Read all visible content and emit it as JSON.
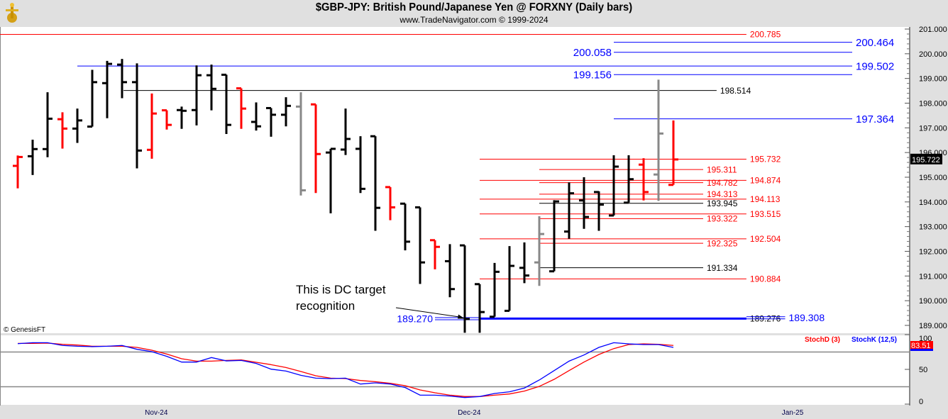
{
  "header": {
    "title": "$GBP-JPY:  British Pound/Japanese Yen @ FORXNY  (Daily bars)",
    "subtitle": "www.TradeNavigator.com © 1999-2024"
  },
  "colors": {
    "up": "#000000",
    "down": "#ff0000",
    "neutral": "#888888",
    "level_red": "#ff0000",
    "level_blue": "#0000ff",
    "level_black": "#000000",
    "stochD": "#ff0000",
    "stochK": "#0000ff"
  },
  "chart_data": {
    "type": "ohlc",
    "title": "$GBP-JPY:  British Pound/Japanese Yen @ FORXNY  (Daily bars)",
    "ylim": [
      188.7,
      201.2
    ],
    "yticks": [
      "189.000",
      "190.000",
      "191.000",
      "192.000",
      "193.000",
      "194.000",
      "195.000",
      "196.000",
      "197.000",
      "198.000",
      "199.000",
      "200.000",
      "201.000"
    ],
    "last_price": "195.722",
    "xlabels": [
      {
        "label": "Nov-24",
        "index": 9.3
      },
      {
        "label": "Dec-24",
        "index": 30.3
      },
      {
        "label": "Jan-25",
        "index": 52
      }
    ],
    "bars": [
      [
        195.46,
        195.88,
        194.55,
        195.82,
        "down"
      ],
      [
        195.85,
        196.52,
        195.09,
        196.14,
        "up"
      ],
      [
        196.14,
        198.44,
        195.81,
        197.37,
        "up"
      ],
      [
        197.35,
        197.63,
        196.16,
        196.97,
        "down"
      ],
      [
        196.97,
        197.78,
        196.39,
        197.3,
        "up"
      ],
      [
        197.05,
        199.35,
        197.05,
        198.85,
        "up"
      ],
      [
        198.81,
        199.71,
        197.39,
        199.59,
        "up"
      ],
      [
        199.56,
        199.79,
        198.2,
        198.85,
        "up"
      ],
      [
        198.85,
        199.61,
        195.36,
        196.08,
        "up"
      ],
      [
        196.11,
        198.39,
        195.75,
        197.58,
        "down"
      ],
      [
        197.71,
        197.71,
        196.93,
        197.12,
        "down"
      ],
      [
        197.72,
        197.86,
        196.96,
        197.69,
        "up"
      ],
      [
        197.72,
        199.53,
        197.1,
        199.13,
        "up"
      ],
      [
        199.13,
        199.56,
        197.71,
        198.58,
        "up"
      ],
      [
        199.15,
        199.15,
        196.75,
        197.12,
        "up"
      ],
      [
        198.6,
        198.6,
        196.96,
        197.78,
        "down"
      ],
      [
        197.24,
        198.03,
        196.89,
        197.06,
        "up"
      ],
      [
        197.8,
        197.8,
        196.64,
        197.53,
        "up"
      ],
      [
        197.53,
        198.24,
        197.06,
        197.89,
        "up"
      ],
      [
        197.86,
        198.44,
        194.26,
        194.47,
        "neutral"
      ],
      [
        197.95,
        197.95,
        194.36,
        195.94,
        "down"
      ],
      [
        196.0,
        196.15,
        193.54,
        196.15,
        "up"
      ],
      [
        196.12,
        197.78,
        195.9,
        196.55,
        "up"
      ],
      [
        196.15,
        196.66,
        194.36,
        194.53,
        "up"
      ],
      [
        196.66,
        196.66,
        192.83,
        193.76,
        "up"
      ],
      [
        194.6,
        194.6,
        193.26,
        193.78,
        "down"
      ],
      [
        193.93,
        193.93,
        192.04,
        192.39,
        "up"
      ],
      [
        193.78,
        193.78,
        190.68,
        191.55,
        "up"
      ],
      [
        192.45,
        192.45,
        191.27,
        192.18,
        "down"
      ],
      [
        191.6,
        192.29,
        190.14,
        190.47,
        "up"
      ],
      [
        192.24,
        192.24,
        188.7,
        189.26,
        "up"
      ],
      [
        190.67,
        190.67,
        188.7,
        189.54,
        "up"
      ],
      [
        189.35,
        191.53,
        189.35,
        191.17,
        "up"
      ],
      [
        189.59,
        192.21,
        189.59,
        191.41,
        "up"
      ],
      [
        191.33,
        192.36,
        190.71,
        191.02,
        "up"
      ],
      [
        191.55,
        193.42,
        190.6,
        192.7,
        "neutral"
      ],
      [
        191.19,
        194.07,
        191.19,
        194.02,
        "up"
      ],
      [
        192.8,
        194.79,
        192.51,
        194.35,
        "up"
      ],
      [
        194.06,
        195.0,
        192.91,
        193.39,
        "up"
      ],
      [
        194.4,
        194.43,
        192.83,
        193.89,
        "up"
      ],
      [
        193.45,
        195.89,
        193.45,
        195.43,
        "up"
      ],
      [
        193.97,
        195.89,
        193.97,
        194.92,
        "up"
      ],
      [
        195.51,
        195.77,
        194.06,
        194.4,
        "down"
      ],
      [
        195.11,
        198.95,
        194.04,
        196.77,
        "neutral"
      ],
      [
        194.69,
        197.3,
        194.69,
        195.72,
        "down"
      ]
    ],
    "levels": [
      {
        "price": 200.785,
        "label": "200.785",
        "color": "level_red",
        "from": -1.2,
        "to": 48.9,
        "side": "right",
        "size": "small"
      },
      {
        "price": 200.464,
        "label": "200.464",
        "color": "level_blue",
        "from": 40,
        "to": 56,
        "side": "right",
        "size": "large"
      },
      {
        "price": 200.058,
        "label": "200.058",
        "color": "level_blue",
        "from": 40,
        "to": 56,
        "side": "left",
        "size": "large"
      },
      {
        "price": 199.502,
        "label": "199.502",
        "color": "level_blue",
        "from": 4,
        "to": 56,
        "side": "right",
        "size": "large"
      },
      {
        "price": 199.156,
        "label": "199.156",
        "color": "level_blue",
        "from": 40,
        "to": 56,
        "side": "left",
        "size": "large"
      },
      {
        "price": 198.514,
        "label": "198.514",
        "color": "level_black",
        "from": 7.1,
        "to": 46.9,
        "side": "right",
        "size": "small"
      },
      {
        "price": 197.364,
        "label": "197.364",
        "color": "level_blue",
        "from": 40,
        "to": 56,
        "side": "right",
        "size": "large"
      },
      {
        "price": 195.732,
        "label": "195.732",
        "color": "level_red",
        "from": 31,
        "to": 48.9,
        "side": "right",
        "size": "small"
      },
      {
        "price": 195.311,
        "label": "195.311",
        "color": "level_red",
        "from": 35,
        "to": 46,
        "side": "right",
        "size": "small"
      },
      {
        "price": 194.874,
        "label": "194.874",
        "color": "level_red",
        "from": 31,
        "to": 48.9,
        "side": "right",
        "size": "small"
      },
      {
        "price": 194.782,
        "label": "194.782",
        "color": "level_red",
        "from": 35,
        "to": 46,
        "side": "right",
        "size": "small"
      },
      {
        "price": 194.313,
        "label": "194.313",
        "color": "level_red",
        "from": 35,
        "to": 46,
        "side": "right",
        "size": "small"
      },
      {
        "price": 194.113,
        "label": "194.113",
        "color": "level_red",
        "from": 31,
        "to": 48.9,
        "side": "right",
        "size": "small"
      },
      {
        "price": 193.945,
        "label": "193.945",
        "color": "level_black",
        "from": 35,
        "to": 46,
        "side": "right",
        "size": "small"
      },
      {
        "price": 193.515,
        "label": "193.515",
        "color": "level_red",
        "from": 31,
        "to": 48.9,
        "side": "right",
        "size": "small"
      },
      {
        "price": 193.322,
        "label": "193.322",
        "color": "level_red",
        "from": 35,
        "to": 46,
        "side": "right",
        "size": "small"
      },
      {
        "price": 192.504,
        "label": "192.504",
        "color": "level_red",
        "from": 31,
        "to": 48.9,
        "side": "right",
        "size": "small"
      },
      {
        "price": 192.325,
        "label": "192.325",
        "color": "level_red",
        "from": 35,
        "to": 46,
        "side": "right",
        "size": "small"
      },
      {
        "price": 191.334,
        "label": "191.334",
        "color": "level_black",
        "from": 35,
        "to": 46,
        "side": "right",
        "size": "small"
      },
      {
        "price": 190.884,
        "label": "190.884",
        "color": "level_red",
        "from": 31,
        "to": 48.9,
        "side": "right",
        "size": "small"
      },
      {
        "price": 189.27,
        "label": "189.270",
        "color": "level_blue",
        "from": 28,
        "to": 31,
        "side": "left",
        "size": "medium"
      },
      {
        "price": 189.276,
        "label": "189.276",
        "color": "level_black",
        "from": 31,
        "to": 48.9,
        "side": "right",
        "size": "small",
        "thick": true
      },
      {
        "price": 189.308,
        "label": "189.308",
        "color": "level_blue",
        "from": 48.9,
        "to": 51.5,
        "side": "right",
        "size": "medium"
      }
    ],
    "annotation": {
      "text_line1": "This is DC target",
      "text_line2": "recognition",
      "target_index": 30,
      "target_price": 189.27
    },
    "watermark": "© GenesisFT",
    "stochastic": {
      "legend_d": "StochD (3)",
      "legend_k": "StochK (12,5)",
      "yticks": [
        "100",
        "50",
        "0"
      ],
      "ylim": [
        0,
        100
      ],
      "guides": [
        25,
        75
      ],
      "last_value": "83.51",
      "K": [
        87,
        88.4,
        88.4,
        84.4,
        83.3,
        82.7,
        83.3,
        84.4,
        78.9,
        75.5,
        68.7,
        60.5,
        60.5,
        67,
        62.2,
        62.9,
        58.5,
        50.3,
        47.6,
        41.5,
        37.4,
        36.7,
        37.4,
        28.9,
        30.6,
        28.9,
        23.8,
        12.9,
        12.9,
        11.6,
        9.5,
        10.9,
        15.3,
        17.7,
        23.1,
        34.7,
        48.3,
        61.9,
        70.7,
        81.6,
        88.4,
        86.7,
        85.7,
        85.7,
        81.6
      ],
      "D": [
        87.4,
        87.4,
        87.8,
        86.1,
        85.0,
        83.3,
        83.3,
        83.3,
        81.6,
        77.6,
        72.1,
        65.3,
        61.9,
        61.9,
        62.9,
        63.6,
        60.2,
        56.8,
        52.7,
        46.9,
        40.8,
        37.4,
        36.7,
        34.0,
        32.3,
        29.9,
        26.5,
        20.4,
        16.3,
        12.9,
        10.9,
        10.9,
        12.9,
        14.6,
        18.7,
        25.5,
        35.7,
        48.3,
        60.5,
        71.4,
        79.9,
        85.7,
        86.7,
        86.1,
        84.4
      ]
    }
  }
}
